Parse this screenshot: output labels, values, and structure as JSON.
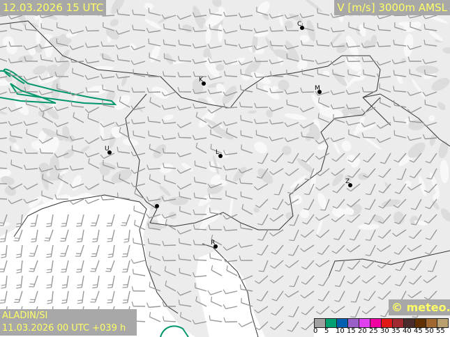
{
  "header": {
    "valid_time": "12.03.2026 15 UTC",
    "parameter": "V [m/s] 3000m AMSL"
  },
  "footer": {
    "model": "ALADIN/SI",
    "run": "11.03.2026 00 UTC +039 h",
    "copyright": "© meteo.si"
  },
  "legend": {
    "ticks": [
      "0",
      "5",
      "10",
      "15",
      "20",
      "25",
      "30",
      "35",
      "40",
      "45",
      "50",
      "55"
    ],
    "colors": [
      "#a0a0a0",
      "#00a070",
      "#0060b0",
      "#9a60c8",
      "#e040f0",
      "#f000a0",
      "#e01818",
      "#a02830",
      "#4a2c2c",
      "#603000",
      "#a06830",
      "#b8a070"
    ]
  },
  "cities": [
    {
      "label": "C"
    },
    {
      "label": "K"
    },
    {
      "label": "M"
    },
    {
      "label": "L"
    },
    {
      "label": "U"
    },
    {
      "label": "Z"
    },
    {
      "label": "R"
    }
  ],
  "colors": {
    "contour": "#00956a",
    "border": "#333333",
    "barb": "#999999"
  }
}
